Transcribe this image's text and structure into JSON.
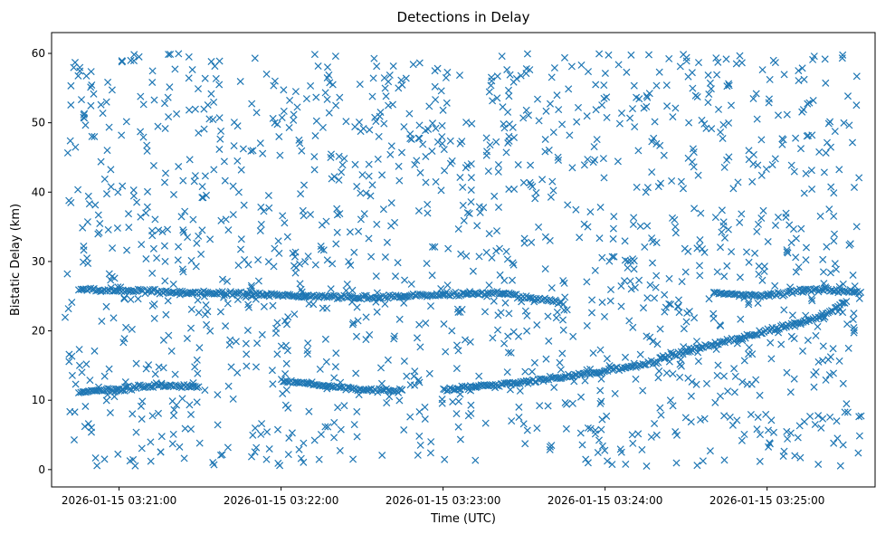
{
  "chart_data": {
    "type": "scatter",
    "title": "Detections in Delay",
    "xlabel": "Time (UTC)",
    "ylabel": "Bistatic Delay (km)",
    "x_ticks": [
      "2026-01-15 03:21:00",
      "2026-01-15 03:22:00",
      "2026-01-15 03:23:00",
      "2026-01-15 03:24:00",
      "2026-01-15 03:25:00"
    ],
    "y_ticks": [
      0,
      10,
      20,
      30,
      40,
      50,
      60
    ],
    "xlim": [
      "2026-01-15 03:20:35",
      "2026-01-15 03:25:40"
    ],
    "ylim": [
      -2.5,
      63
    ],
    "marker": "x",
    "color": "#1f77b4",
    "grid": false,
    "series": [
      {
        "time_range": [
          "2026-01-15 03:20:40",
          "2026-01-15 03:25:35"
        ],
        "noise_points_per_second": 5,
        "noise_y_range": [
          0.5,
          60
        ],
        "tracks": [
          {
            "name_hint": "",
            "points": [
              [
                "2026-01-15 03:20:45",
                11.2
              ],
              [
                "2026-01-15 03:21:00",
                11.6
              ],
              [
                "2026-01-15 03:21:15",
                12.2
              ],
              [
                "2026-01-15 03:21:30",
                11.9
              ]
            ]
          },
          {
            "name_hint": "",
            "points": [
              [
                "2026-01-15 03:22:00",
                12.8
              ],
              [
                "2026-01-15 03:22:30",
                11.5
              ],
              [
                "2026-01-15 03:22:45",
                11.3
              ]
            ]
          },
          {
            "name_hint": "",
            "points": [
              [
                "2026-01-15 03:23:00",
                11.5
              ],
              [
                "2026-01-15 03:23:30",
                12.6
              ],
              [
                "2026-01-15 03:24:00",
                14.2
              ],
              [
                "2026-01-15 03:24:20",
                15.6
              ]
            ]
          },
          {
            "name_hint": "",
            "points": [
              [
                "2026-01-15 03:24:20",
                16.0
              ],
              [
                "2026-01-15 03:24:40",
                18.0
              ],
              [
                "2026-01-15 03:25:00",
                20.0
              ],
              [
                "2026-01-15 03:25:20",
                22.0
              ],
              [
                "2026-01-15 03:25:30",
                24.5
              ]
            ]
          },
          {
            "name_hint": "",
            "points": [
              [
                "2026-01-15 03:20:45",
                26.0
              ],
              [
                "2026-01-15 03:21:30",
                25.5
              ],
              [
                "2026-01-15 03:22:30",
                24.8
              ],
              [
                "2026-01-15 03:23:20",
                25.5
              ],
              [
                "2026-01-15 03:23:45",
                24.0
              ]
            ]
          },
          {
            "name_hint": "",
            "points": [
              [
                "2026-01-15 03:24:40",
                25.5
              ],
              [
                "2026-01-15 03:25:00",
                25.0
              ],
              [
                "2026-01-15 03:25:15",
                26.0
              ],
              [
                "2026-01-15 03:25:35",
                25.5
              ]
            ]
          }
        ]
      }
    ]
  }
}
